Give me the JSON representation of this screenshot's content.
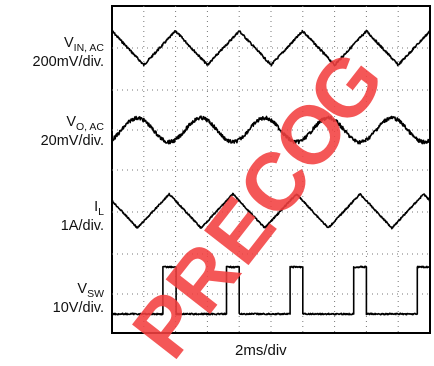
{
  "watermark": {
    "text": "PRECOG",
    "color": "#f24040"
  },
  "chart_data": {
    "type": "line",
    "time_base": "2ms/div",
    "time_divisions": 10,
    "time_range_ms": [
      0,
      20
    ],
    "traces": [
      {
        "symbol": "V",
        "subscript": "IN, AC",
        "scale": "200mV/div.",
        "waveform": "triangle",
        "period_ms": 4.0,
        "color": "#000000"
      },
      {
        "symbol": "V",
        "subscript": "O, AC",
        "scale": "20mV/div.",
        "waveform": "sine",
        "period_ms": 4.0,
        "color": "#000000"
      },
      {
        "symbol": "I",
        "subscript": "L",
        "scale": "1A/div.",
        "waveform": "triangle",
        "period_ms": 4.0,
        "color": "#000000"
      },
      {
        "symbol": "V",
        "subscript": "SW",
        "scale": "10V/div.",
        "waveform": "square",
        "period_ms": 4.0,
        "duty": 0.2,
        "color": "#000000"
      }
    ]
  },
  "time_label": "2ms/div"
}
